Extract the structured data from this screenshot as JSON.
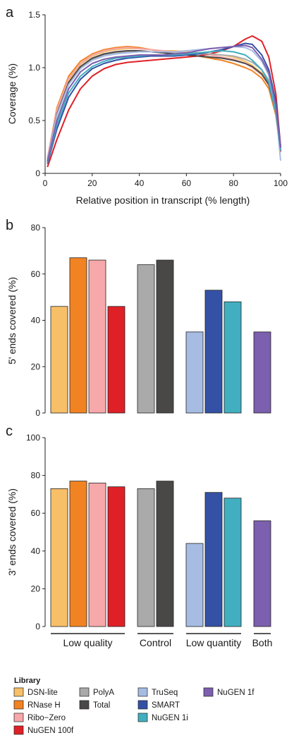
{
  "chart_data": [
    {
      "panel": "a",
      "type": "line",
      "xlabel": "Relative position in transcript (% length)",
      "ylabel": "Coverage (%)",
      "xlim": [
        0,
        100
      ],
      "ylim": [
        0,
        1.5
      ],
      "xticks": [
        "0",
        "20",
        "40",
        "60",
        "80",
        "100"
      ],
      "yticks": [
        "0",
        "0.5",
        "1.0",
        "1.5"
      ],
      "x": [
        1,
        5,
        10,
        15,
        20,
        25,
        30,
        35,
        40,
        45,
        50,
        55,
        60,
        65,
        70,
        75,
        80,
        85,
        88,
        92,
        95,
        98,
        100
      ],
      "series": [
        {
          "name": "DSN-lite",
          "color": "#F7BF67",
          "values": [
            0.12,
            0.58,
            0.88,
            1.03,
            1.11,
            1.15,
            1.17,
            1.18,
            1.18,
            1.17,
            1.16,
            1.16,
            1.15,
            1.14,
            1.13,
            1.12,
            1.1,
            1.06,
            1.02,
            0.95,
            0.85,
            0.6,
            0.22
          ]
        },
        {
          "name": "RNase H",
          "color": "#F28322",
          "values": [
            0.14,
            0.62,
            0.92,
            1.06,
            1.13,
            1.17,
            1.19,
            1.2,
            1.19,
            1.17,
            1.15,
            1.14,
            1.12,
            1.11,
            1.09,
            1.07,
            1.04,
            1.0,
            0.97,
            0.9,
            0.8,
            0.55,
            0.2
          ]
        },
        {
          "name": "Ribo-Zero",
          "color": "#F6A8AA",
          "values": [
            0.14,
            0.6,
            0.9,
            1.04,
            1.12,
            1.16,
            1.18,
            1.19,
            1.18,
            1.17,
            1.16,
            1.15,
            1.14,
            1.13,
            1.12,
            1.1,
            1.08,
            1.04,
            1.0,
            0.93,
            0.83,
            0.58,
            0.21
          ]
        },
        {
          "name": "NuGEN 100f",
          "color": "#E02027",
          "values": [
            0.06,
            0.32,
            0.6,
            0.8,
            0.92,
            0.99,
            1.03,
            1.05,
            1.06,
            1.07,
            1.08,
            1.09,
            1.1,
            1.11,
            1.13,
            1.16,
            1.2,
            1.27,
            1.3,
            1.25,
            1.1,
            0.75,
            0.25
          ]
        },
        {
          "name": "PolyA",
          "color": "#AAAAAA",
          "values": [
            0.12,
            0.55,
            0.85,
            1.0,
            1.08,
            1.12,
            1.14,
            1.15,
            1.15,
            1.15,
            1.14,
            1.14,
            1.14,
            1.13,
            1.13,
            1.12,
            1.11,
            1.08,
            1.05,
            0.98,
            0.88,
            0.6,
            0.22
          ]
        },
        {
          "name": "Total",
          "color": "#4A4747",
          "values": [
            0.12,
            0.56,
            0.86,
            1.01,
            1.09,
            1.13,
            1.15,
            1.16,
            1.16,
            1.15,
            1.14,
            1.13,
            1.12,
            1.11,
            1.1,
            1.09,
            1.07,
            1.04,
            1.01,
            0.94,
            0.84,
            0.58,
            0.21
          ]
        },
        {
          "name": "TruSeq",
          "color": "#A6BCE3",
          "values": [
            0.12,
            0.55,
            0.84,
            0.99,
            1.07,
            1.11,
            1.13,
            1.14,
            1.15,
            1.15,
            1.15,
            1.15,
            1.16,
            1.17,
            1.18,
            1.19,
            1.2,
            1.19,
            1.16,
            1.06,
            0.93,
            0.6,
            0.12
          ]
        },
        {
          "name": "SMART",
          "color": "#3451A5",
          "values": [
            0.09,
            0.42,
            0.72,
            0.89,
            0.99,
            1.04,
            1.07,
            1.09,
            1.1,
            1.11,
            1.11,
            1.11,
            1.12,
            1.13,
            1.15,
            1.17,
            1.2,
            1.23,
            1.22,
            1.12,
            0.98,
            0.68,
            0.25
          ]
        },
        {
          "name": "NuGEN 1i",
          "color": "#41AFC0",
          "values": [
            0.1,
            0.46,
            0.76,
            0.92,
            1.01,
            1.06,
            1.09,
            1.1,
            1.11,
            1.12,
            1.12,
            1.12,
            1.13,
            1.14,
            1.15,
            1.16,
            1.15,
            1.12,
            1.07,
            0.98,
            0.86,
            0.58,
            0.22
          ]
        },
        {
          "name": "NuGEN 1f",
          "color": "#7C5FAE",
          "values": [
            0.11,
            0.5,
            0.8,
            0.96,
            1.04,
            1.08,
            1.1,
            1.11,
            1.12,
            1.12,
            1.12,
            1.13,
            1.14,
            1.16,
            1.18,
            1.19,
            1.2,
            1.21,
            1.19,
            1.08,
            0.95,
            0.64,
            0.24
          ]
        }
      ]
    },
    {
      "panel": "b",
      "type": "bar",
      "ylabel": "5' ends covered (%)",
      "ylim": [
        0,
        80
      ],
      "yticks": [
        "0",
        "20",
        "40",
        "60",
        "80"
      ],
      "groups": [
        {
          "label": "Low quality",
          "bars": [
            {
              "name": "DSN-lite",
              "value": 46
            },
            {
              "name": "RNase H",
              "value": 67
            },
            {
              "name": "Ribo-Zero",
              "value": 66
            },
            {
              "name": "NuGEN 100f",
              "value": 46
            }
          ]
        },
        {
          "label": "Control",
          "bars": [
            {
              "name": "PolyA",
              "value": 64
            },
            {
              "name": "Total",
              "value": 66
            }
          ]
        },
        {
          "label": "Low quantity",
          "bars": [
            {
              "name": "TruSeq",
              "value": 35
            },
            {
              "name": "SMART",
              "value": 53
            },
            {
              "name": "NuGEN 1i",
              "value": 48
            }
          ]
        },
        {
          "label": "Both",
          "bars": [
            {
              "name": "NuGEN 1f",
              "value": 35
            }
          ]
        }
      ]
    },
    {
      "panel": "c",
      "type": "bar",
      "ylabel": "3' ends covered (%)",
      "ylim": [
        0,
        100
      ],
      "yticks": [
        "0",
        "20",
        "40",
        "60",
        "80",
        "100"
      ],
      "groups": [
        {
          "label": "Low quality",
          "bars": [
            {
              "name": "DSN-lite",
              "value": 73
            },
            {
              "name": "RNase H",
              "value": 77
            },
            {
              "name": "Ribo-Zero",
              "value": 76
            },
            {
              "name": "NuGEN 100f",
              "value": 74
            }
          ]
        },
        {
          "label": "Control",
          "bars": [
            {
              "name": "PolyA",
              "value": 73
            },
            {
              "name": "Total",
              "value": 77
            }
          ]
        },
        {
          "label": "Low quantity",
          "bars": [
            {
              "name": "TruSeq",
              "value": 44
            },
            {
              "name": "SMART",
              "value": 71
            },
            {
              "name": "NuGEN 1i",
              "value": 68
            }
          ]
        },
        {
          "label": "Both",
          "bars": [
            {
              "name": "NuGEN 1f",
              "value": 56
            }
          ]
        }
      ]
    }
  ],
  "legend": {
    "title": "Library",
    "items": [
      {
        "name": "DSN-lite",
        "color": "#F7BF67"
      },
      {
        "name": "RNase H",
        "color": "#F28322"
      },
      {
        "name": "Ribo−Zero",
        "color": "#F6A8AA"
      },
      {
        "name": "NuGEN 100f",
        "color": "#E02027"
      },
      {
        "name": "PolyA",
        "color": "#AAAAAA"
      },
      {
        "name": "Total",
        "color": "#4A4747"
      },
      {
        "name": "TruSeq",
        "color": "#A6BCE3"
      },
      {
        "name": "SMART",
        "color": "#3451A5"
      },
      {
        "name": "NuGEN 1i",
        "color": "#41AFC0"
      },
      {
        "name": "NuGEN 1f",
        "color": "#7C5FAE"
      }
    ]
  }
}
